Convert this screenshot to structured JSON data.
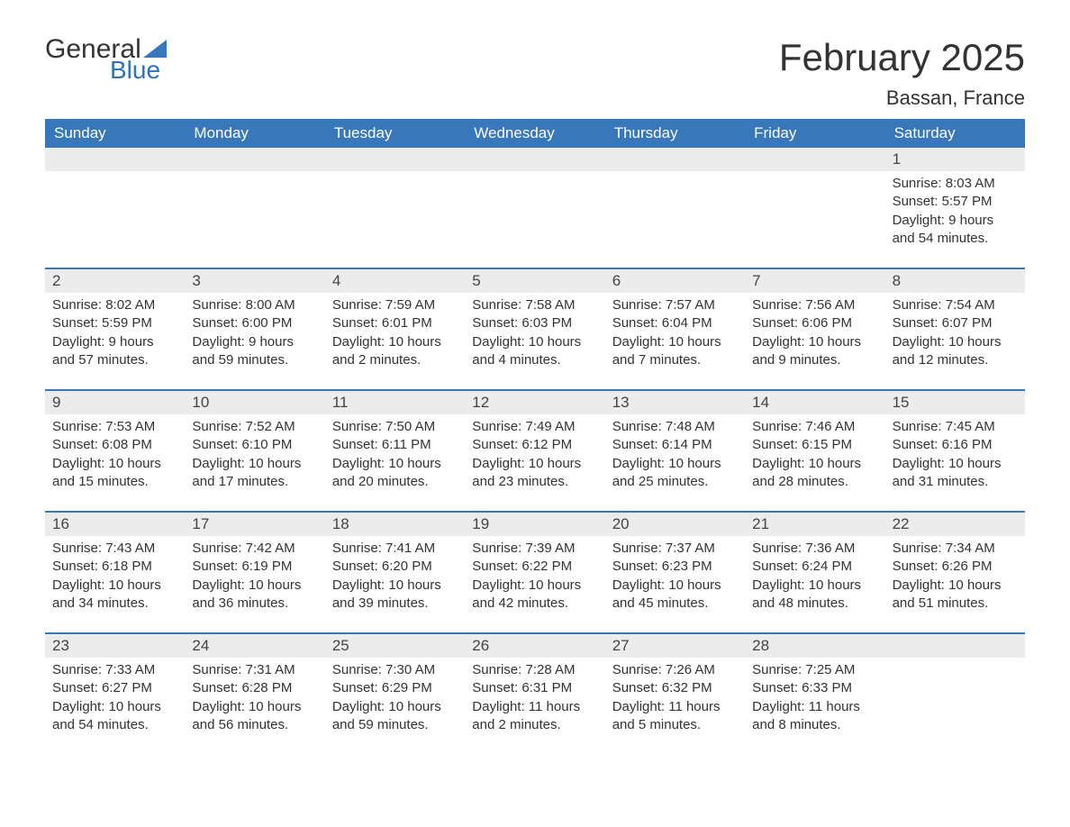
{
  "logo": {
    "general": "General",
    "blue": "Blue",
    "triangle_color": "#3877b9"
  },
  "title": "February 2025",
  "location": "Bassan, France",
  "colors": {
    "header_bg": "#3877b9",
    "header_fg": "#ffffff",
    "daynum_bg": "#ececec",
    "week_border": "#3877b9",
    "text": "#333333",
    "background": "#ffffff"
  },
  "daynames": [
    "Sunday",
    "Monday",
    "Tuesday",
    "Wednesday",
    "Thursday",
    "Friday",
    "Saturday"
  ],
  "weeks": [
    [
      {
        "empty": true
      },
      {
        "empty": true
      },
      {
        "empty": true
      },
      {
        "empty": true
      },
      {
        "empty": true
      },
      {
        "empty": true
      },
      {
        "num": "1",
        "sunrise": "8:03 AM",
        "sunset": "5:57 PM",
        "daylight": "9 hours and 54 minutes."
      }
    ],
    [
      {
        "num": "2",
        "sunrise": "8:02 AM",
        "sunset": "5:59 PM",
        "daylight": "9 hours and 57 minutes."
      },
      {
        "num": "3",
        "sunrise": "8:00 AM",
        "sunset": "6:00 PM",
        "daylight": "9 hours and 59 minutes."
      },
      {
        "num": "4",
        "sunrise": "7:59 AM",
        "sunset": "6:01 PM",
        "daylight": "10 hours and 2 minutes."
      },
      {
        "num": "5",
        "sunrise": "7:58 AM",
        "sunset": "6:03 PM",
        "daylight": "10 hours and 4 minutes."
      },
      {
        "num": "6",
        "sunrise": "7:57 AM",
        "sunset": "6:04 PM",
        "daylight": "10 hours and 7 minutes."
      },
      {
        "num": "7",
        "sunrise": "7:56 AM",
        "sunset": "6:06 PM",
        "daylight": "10 hours and 9 minutes."
      },
      {
        "num": "8",
        "sunrise": "7:54 AM",
        "sunset": "6:07 PM",
        "daylight": "10 hours and 12 minutes."
      }
    ],
    [
      {
        "num": "9",
        "sunrise": "7:53 AM",
        "sunset": "6:08 PM",
        "daylight": "10 hours and 15 minutes."
      },
      {
        "num": "10",
        "sunrise": "7:52 AM",
        "sunset": "6:10 PM",
        "daylight": "10 hours and 17 minutes."
      },
      {
        "num": "11",
        "sunrise": "7:50 AM",
        "sunset": "6:11 PM",
        "daylight": "10 hours and 20 minutes."
      },
      {
        "num": "12",
        "sunrise": "7:49 AM",
        "sunset": "6:12 PM",
        "daylight": "10 hours and 23 minutes."
      },
      {
        "num": "13",
        "sunrise": "7:48 AM",
        "sunset": "6:14 PM",
        "daylight": "10 hours and 25 minutes."
      },
      {
        "num": "14",
        "sunrise": "7:46 AM",
        "sunset": "6:15 PM",
        "daylight": "10 hours and 28 minutes."
      },
      {
        "num": "15",
        "sunrise": "7:45 AM",
        "sunset": "6:16 PM",
        "daylight": "10 hours and 31 minutes."
      }
    ],
    [
      {
        "num": "16",
        "sunrise": "7:43 AM",
        "sunset": "6:18 PM",
        "daylight": "10 hours and 34 minutes."
      },
      {
        "num": "17",
        "sunrise": "7:42 AM",
        "sunset": "6:19 PM",
        "daylight": "10 hours and 36 minutes."
      },
      {
        "num": "18",
        "sunrise": "7:41 AM",
        "sunset": "6:20 PM",
        "daylight": "10 hours and 39 minutes."
      },
      {
        "num": "19",
        "sunrise": "7:39 AM",
        "sunset": "6:22 PM",
        "daylight": "10 hours and 42 minutes."
      },
      {
        "num": "20",
        "sunrise": "7:37 AM",
        "sunset": "6:23 PM",
        "daylight": "10 hours and 45 minutes."
      },
      {
        "num": "21",
        "sunrise": "7:36 AM",
        "sunset": "6:24 PM",
        "daylight": "10 hours and 48 minutes."
      },
      {
        "num": "22",
        "sunrise": "7:34 AM",
        "sunset": "6:26 PM",
        "daylight": "10 hours and 51 minutes."
      }
    ],
    [
      {
        "num": "23",
        "sunrise": "7:33 AM",
        "sunset": "6:27 PM",
        "daylight": "10 hours and 54 minutes."
      },
      {
        "num": "24",
        "sunrise": "7:31 AM",
        "sunset": "6:28 PM",
        "daylight": "10 hours and 56 minutes."
      },
      {
        "num": "25",
        "sunrise": "7:30 AM",
        "sunset": "6:29 PM",
        "daylight": "10 hours and 59 minutes."
      },
      {
        "num": "26",
        "sunrise": "7:28 AM",
        "sunset": "6:31 PM",
        "daylight": "11 hours and 2 minutes."
      },
      {
        "num": "27",
        "sunrise": "7:26 AM",
        "sunset": "6:32 PM",
        "daylight": "11 hours and 5 minutes."
      },
      {
        "num": "28",
        "sunrise": "7:25 AM",
        "sunset": "6:33 PM",
        "daylight": "11 hours and 8 minutes."
      },
      {
        "empty": true
      }
    ]
  ],
  "labels": {
    "sunrise_prefix": "Sunrise: ",
    "sunset_prefix": "Sunset: ",
    "daylight_prefix": "Daylight: "
  }
}
